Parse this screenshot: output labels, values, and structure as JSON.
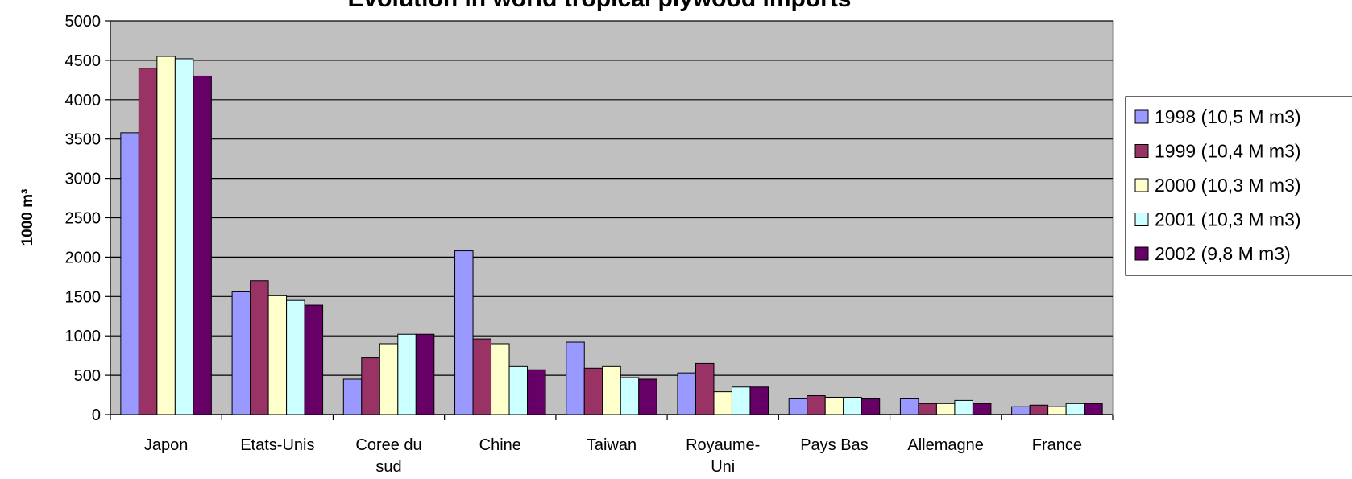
{
  "chart_data": {
    "type": "bar",
    "title": "Evolution in world tropical plywood imports",
    "y_label": "1000 m³",
    "categories": [
      "Japon",
      "Etats-Unis",
      "Coree du\nsud",
      "Chine",
      "Taiwan",
      "Royaume-\nUni",
      "Pays Bas",
      "Allemagne",
      "France"
    ],
    "series": [
      {
        "name": "1998 (10,5 M m3)",
        "color": "#9999ff",
        "values": [
          3580,
          1560,
          450,
          2080,
          920,
          530,
          200,
          200,
          100
        ]
      },
      {
        "name": "1999 (10,4 M m3)",
        "color": "#993366",
        "values": [
          4400,
          1700,
          720,
          960,
          590,
          650,
          240,
          140,
          120
        ]
      },
      {
        "name": "2000 (10,3 M m3)",
        "color": "#ffffcc",
        "values": [
          4550,
          1510,
          900,
          900,
          610,
          290,
          220,
          140,
          100
        ]
      },
      {
        "name": "2001 (10,3 M m3)",
        "color": "#ccffff",
        "values": [
          4520,
          1450,
          1020,
          610,
          470,
          350,
          220,
          180,
          140
        ]
      },
      {
        "name": "2002 (9,8 M m3)",
        "color": "#660066",
        "values": [
          4300,
          1390,
          1020,
          570,
          450,
          350,
          200,
          140,
          140
        ]
      }
    ],
    "ylim": [
      0,
      5000
    ],
    "yticks": [
      0,
      500,
      1000,
      1500,
      2000,
      2500,
      3000,
      3500,
      4000,
      4500,
      5000
    ],
    "grid": true,
    "plot_background": "#c0c0c0",
    "legend": "right"
  }
}
